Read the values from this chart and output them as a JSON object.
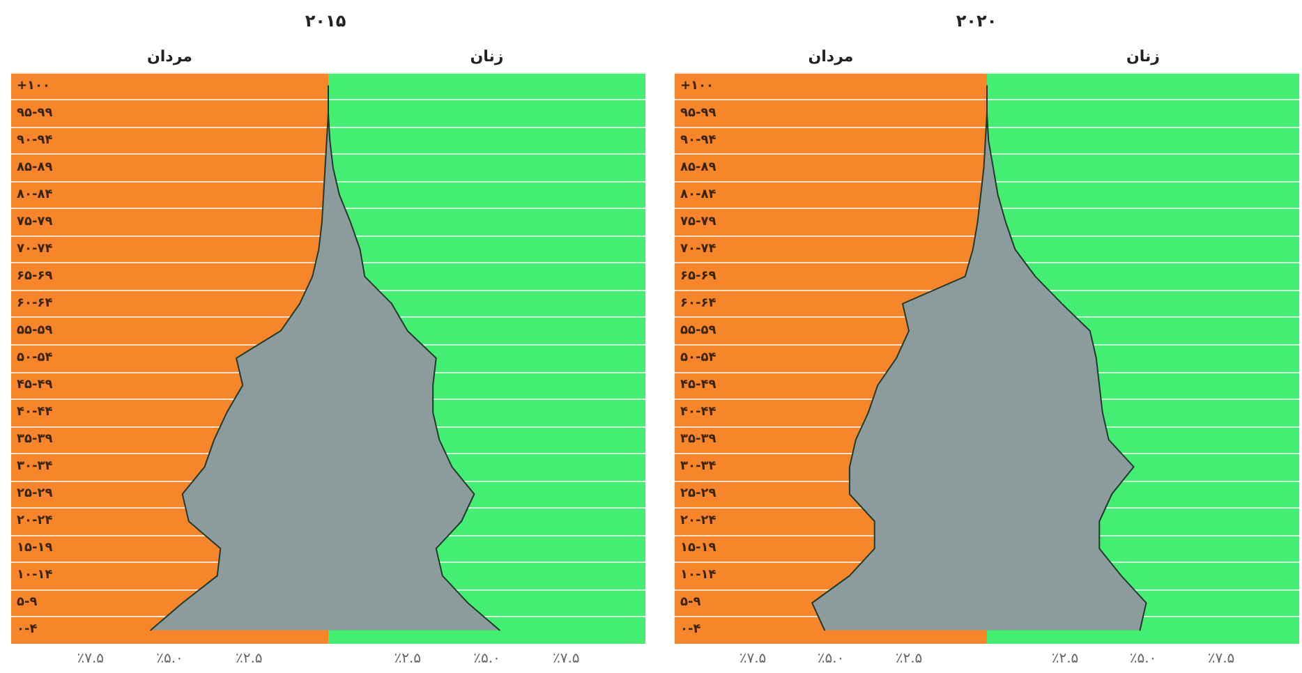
{
  "chart_data": [
    {
      "type": "area",
      "title": "۲۰۱۵",
      "orientation": "horizontal",
      "grid": "y",
      "categories": [
        "+۱۰۰",
        "۹۵-۹۹",
        "۹۰-۹۴",
        "۸۵-۸۹",
        "۸۰-۸۴",
        "۷۵-۷۹",
        "۷۰-۷۴",
        "۶۵-۶۹",
        "۶۰-۶۴",
        "۵۵-۵۹",
        "۵۰-۵۴",
        "۴۵-۴۹",
        "۴۰-۴۴",
        "۳۵-۳۹",
        "۳۰-۳۴",
        "۲۵-۲۹",
        "۲۰-۲۴",
        "۱۵-۱۹",
        "۱۰-۱۴",
        "۵-۹",
        "۰-۴"
      ],
      "series": [
        {
          "color": "#8c9c9c",
          "values": [
            0,
            0,
            -0.05,
            -0.1,
            -0.15,
            -0.2,
            -0.3,
            -0.5,
            -0.9,
            -1.5,
            -2.9,
            -2.7,
            -3.2,
            -3.6,
            -3.9,
            -4.6,
            -4.4,
            -3.4,
            -3.5,
            -4.6,
            -5.6
          ]
        },
        {
          "color": "#8c9c9c",
          "values": [
            0,
            0,
            0.05,
            0.15,
            0.35,
            0.7,
            1.0,
            1.15,
            2.0,
            2.5,
            3.4,
            3.3,
            3.3,
            3.5,
            3.9,
            4.6,
            4.2,
            3.4,
            3.6,
            4.4,
            5.4
          ]
        }
      ],
      "xlim": [
        -10,
        10
      ],
      "xticks": [
        {
          "value": -7.5,
          "label": "٪۷.۵"
        },
        {
          "value": -5,
          "label": "٪۵.۰"
        },
        {
          "value": -2.5,
          "label": "٪۲.۵"
        },
        {
          "value": 2.5,
          "label": "٪۲.۵"
        },
        {
          "value": 5,
          "label": "٪۵.۰"
        },
        {
          "value": 7.5,
          "label": "٪۷.۵"
        }
      ],
      "bands": [
        {
          "axis": "x",
          "from": -10,
          "to": 0,
          "label": "مردان",
          "color": "#f7862a"
        },
        {
          "axis": "x",
          "from": 0,
          "to": 10,
          "label": "زنان",
          "color": "#44ee72"
        }
      ]
    },
    {
      "type": "area",
      "title": "۲۰۲۰",
      "orientation": "horizontal",
      "grid": "y",
      "categories": [
        "+۱۰۰",
        "۹۵-۹۹",
        "۹۰-۹۴",
        "۸۵-۸۹",
        "۸۰-۸۴",
        "۷۵-۷۹",
        "۷۰-۷۴",
        "۶۵-۶۹",
        "۶۰-۶۴",
        "۵۵-۵۹",
        "۵۰-۵۴",
        "۴۵-۴۹",
        "۴۰-۴۴",
        "۳۵-۳۹",
        "۳۰-۳۴",
        "۲۵-۲۹",
        "۲۰-۲۴",
        "۱۵-۱۹",
        "۱۰-۱۴",
        "۵-۹",
        "۰-۴"
      ],
      "series": [
        {
          "color": "#8c9c9c",
          "values": [
            0,
            0,
            -0.05,
            -0.1,
            -0.2,
            -0.3,
            -0.45,
            -0.7,
            -2.7,
            -2.5,
            -2.9,
            -3.5,
            -3.8,
            -4.2,
            -4.4,
            -4.4,
            -3.6,
            -3.6,
            -4.4,
            -5.6,
            -5.2
          ]
        },
        {
          "color": "#8c9c9c",
          "values": [
            0,
            0,
            0.05,
            0.2,
            0.35,
            0.6,
            0.9,
            1.55,
            2.4,
            3.3,
            3.5,
            3.6,
            3.7,
            3.9,
            4.7,
            4.0,
            3.6,
            3.6,
            4.3,
            5.1,
            4.9
          ]
        }
      ],
      "xlim": [
        -10,
        10
      ],
      "xticks": [
        {
          "value": -7.5,
          "label": "٪۷.۵"
        },
        {
          "value": -5,
          "label": "٪۵.۰"
        },
        {
          "value": -2.5,
          "label": "٪۲.۵"
        },
        {
          "value": 2.5,
          "label": "٪۲.۵"
        },
        {
          "value": 5,
          "label": "٪۵.۰"
        },
        {
          "value": 7.5,
          "label": "٪۷.۵"
        }
      ],
      "bands": [
        {
          "axis": "x",
          "from": -10,
          "to": 0,
          "label": "مردان",
          "color": "#f7862a"
        },
        {
          "axis": "x",
          "from": 0,
          "to": 10,
          "label": "زنان",
          "color": "#44ee72"
        }
      ]
    }
  ]
}
